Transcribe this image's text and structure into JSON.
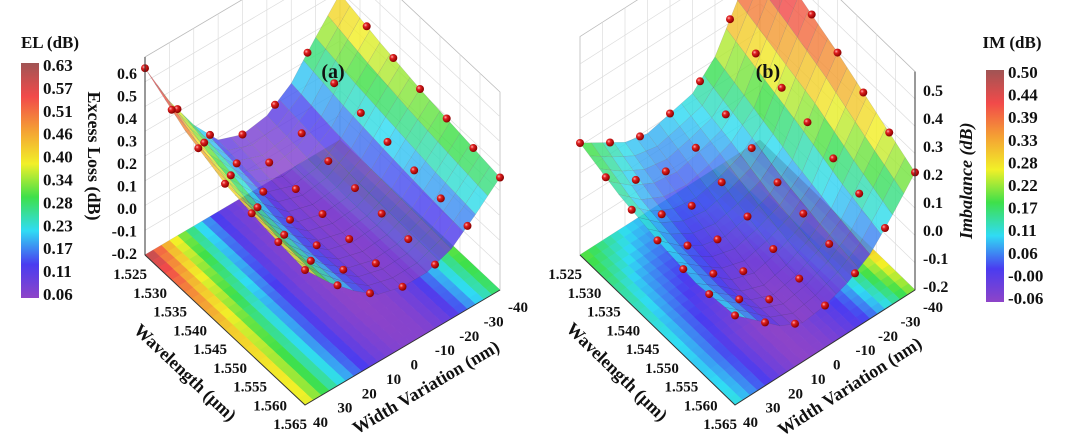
{
  "chart_data": [
    {
      "type": "surface",
      "title": "(a)",
      "xlabel": "Wavelength (μm)",
      "ylabel": "Width Variation (nm)",
      "zlabel": "Excess Loss (dB)",
      "colorbar_title": "EL (dB)",
      "colorbar_ticks": [
        "0.63",
        "0.57",
        "0.51",
        "0.46",
        "0.40",
        "0.34",
        "0.28",
        "0.23",
        "0.17",
        "0.11",
        "0.06"
      ],
      "colorbar_range": [
        0.06,
        0.63
      ],
      "x_ticks": [
        "1.525",
        "1.530",
        "1.535",
        "1.540",
        "1.545",
        "1.550",
        "1.555",
        "1.560",
        "1.565"
      ],
      "y_ticks": [
        "40",
        "30",
        "20",
        "10",
        "0",
        "-10",
        "-20",
        "-30",
        "-40"
      ],
      "z_ticks": [
        "-0.2",
        "-0.1",
        "0.0",
        "0.1",
        "0.2",
        "0.3",
        "0.4",
        "0.5",
        "0.6"
      ],
      "zlim": [
        -0.2,
        0.6
      ],
      "wavelengths": [
        1.525,
        1.535,
        1.545,
        1.555,
        1.565
      ],
      "widths": [
        -40,
        -30,
        -20,
        -10,
        0,
        10,
        20,
        30,
        40
      ],
      "z": [
        [
          0.45,
          0.32,
          0.18,
          0.1,
          0.08,
          0.12,
          0.25,
          0.42,
          0.63
        ],
        [
          0.4,
          0.28,
          0.15,
          0.08,
          0.06,
          0.1,
          0.22,
          0.35,
          0.52
        ],
        [
          0.36,
          0.25,
          0.13,
          0.07,
          0.06,
          0.09,
          0.18,
          0.3,
          0.45
        ],
        [
          0.33,
          0.22,
          0.12,
          0.07,
          0.06,
          0.09,
          0.17,
          0.28,
          0.42
        ],
        [
          0.3,
          0.2,
          0.11,
          0.07,
          0.07,
          0.1,
          0.18,
          0.28,
          0.4
        ]
      ]
    },
    {
      "type": "surface",
      "title": "(b)",
      "xlabel": "Wavelength (μm)",
      "ylabel": "Width Variation (nm)",
      "zlabel": "Imbalance (dB)",
      "colorbar_title": "IM (dB)",
      "colorbar_ticks": [
        "0.50",
        "0.44",
        "0.39",
        "0.33",
        "0.28",
        "0.22",
        "0.17",
        "0.11",
        "0.06",
        "-0.00",
        "-0.06"
      ],
      "colorbar_range": [
        -0.06,
        0.5
      ],
      "x_ticks": [
        "1.525",
        "1.530",
        "1.535",
        "1.540",
        "1.545",
        "1.550",
        "1.555",
        "1.560",
        "1.565"
      ],
      "y_ticks": [
        "40",
        "30",
        "20",
        "10",
        "0",
        "-10",
        "-20",
        "-30",
        "-40"
      ],
      "z_ticks": [
        "-0.2",
        "-0.1",
        "0.0",
        "0.1",
        "0.2",
        "0.3",
        "0.4",
        "0.5"
      ],
      "zlim": [
        -0.2,
        0.5
      ],
      "wavelengths": [
        1.525,
        1.535,
        1.545,
        1.555,
        1.565
      ],
      "widths": [
        -40,
        -30,
        -20,
        -10,
        0,
        10,
        20,
        30,
        40
      ],
      "z": [
        [
          0.5,
          0.35,
          0.2,
          0.12,
          0.1,
          0.08,
          0.1,
          0.15,
          0.2
        ],
        [
          0.45,
          0.3,
          0.15,
          0.08,
          0.05,
          0.03,
          0.04,
          0.08,
          0.15
        ],
        [
          0.38,
          0.25,
          0.1,
          0.03,
          0.0,
          -0.02,
          0.0,
          0.05,
          0.12
        ],
        [
          0.3,
          0.18,
          0.06,
          0.0,
          -0.04,
          -0.06,
          -0.03,
          0.04,
          0.1
        ],
        [
          0.22,
          0.12,
          0.03,
          -0.02,
          -0.05,
          -0.06,
          -0.02,
          0.05,
          0.12
        ]
      ]
    }
  ],
  "colors": {
    "colormap": [
      "#8e44c8",
      "#4a3cf0",
      "#30dcf4",
      "#3ee04a",
      "#f2f028",
      "#f4a034",
      "#f24a4a",
      "#a05454"
    ],
    "marker": "#d01818"
  }
}
